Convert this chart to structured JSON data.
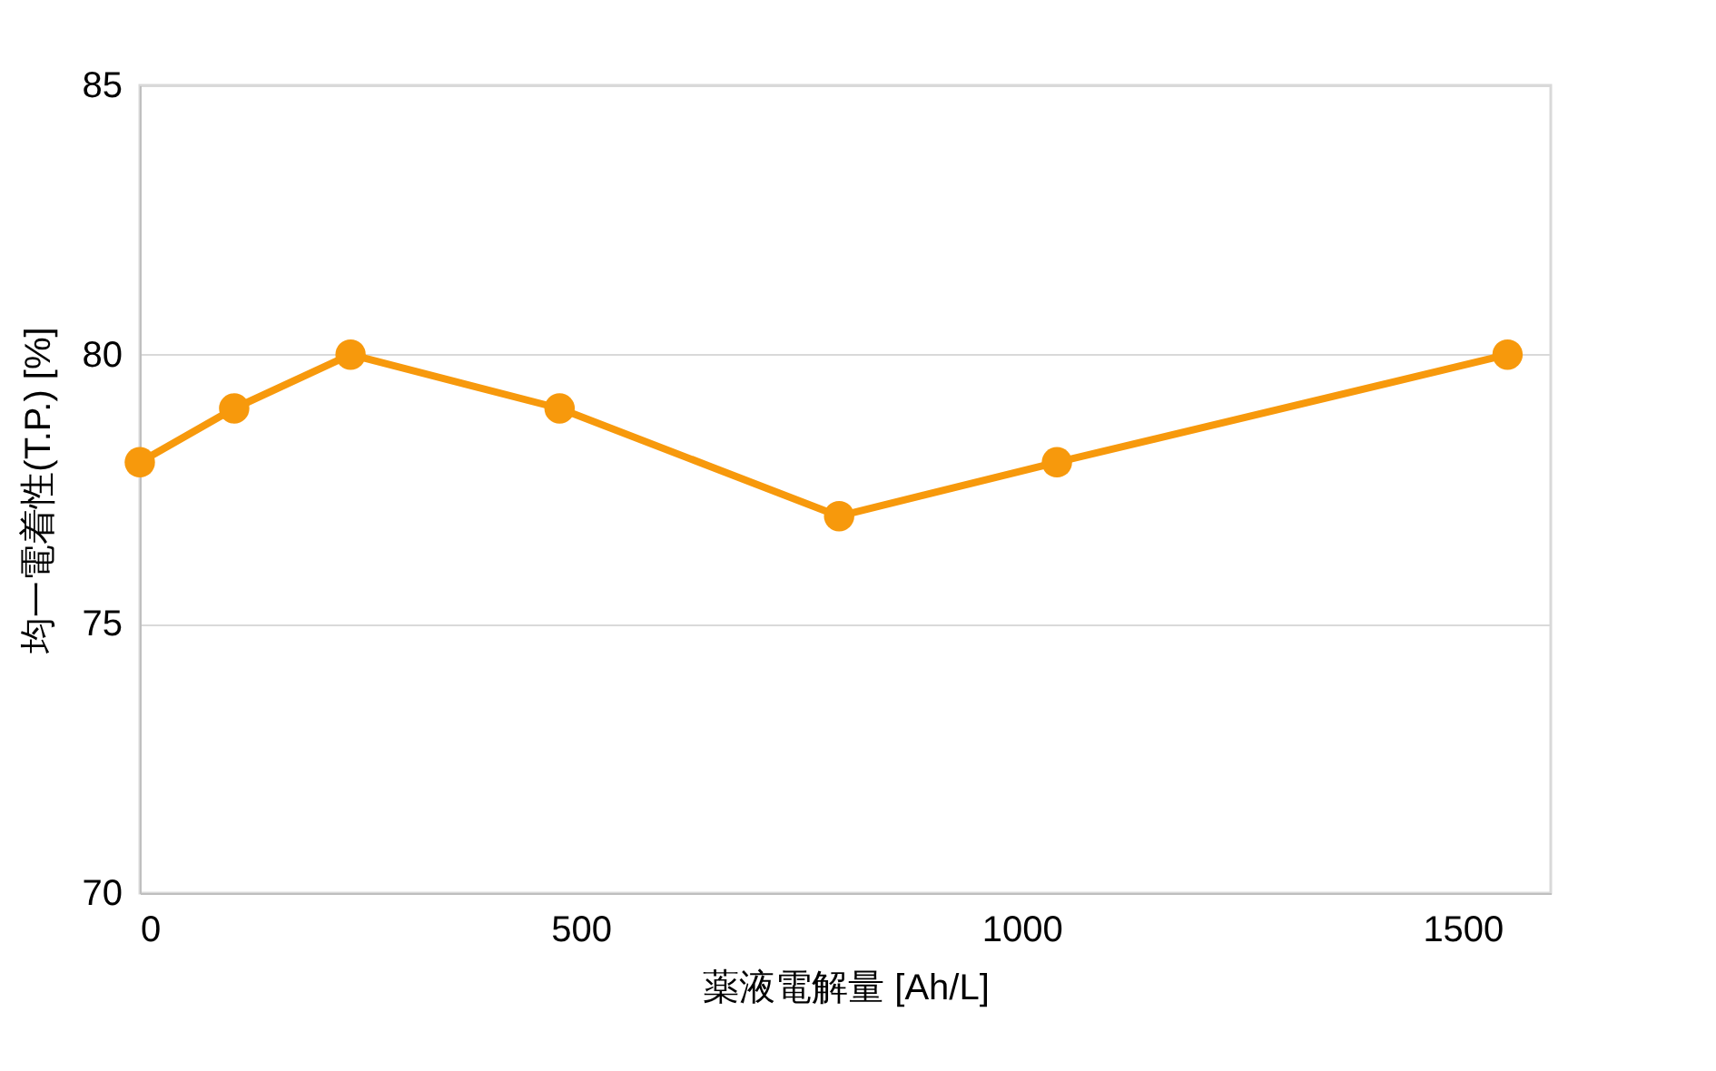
{
  "chart_data": {
    "type": "line",
    "xlabel": "薬液電解量 [Ah/L]",
    "ylabel": "均一電着性(T.P.) [%]",
    "x": [
      0,
      107,
      239,
      476,
      793,
      1040,
      1551
    ],
    "series": [
      {
        "color": "#f7990c",
        "values": [
          78,
          79,
          80,
          79,
          77,
          78,
          80
        ]
      }
    ],
    "xlim": [
      0,
      1600
    ],
    "xticks": [
      0,
      500,
      1000,
      1500
    ],
    "ylim": [
      70,
      85
    ],
    "yticks": [
      70,
      75,
      80,
      85
    ],
    "grid": "y",
    "marker": "circle",
    "line_style": "solid"
  }
}
